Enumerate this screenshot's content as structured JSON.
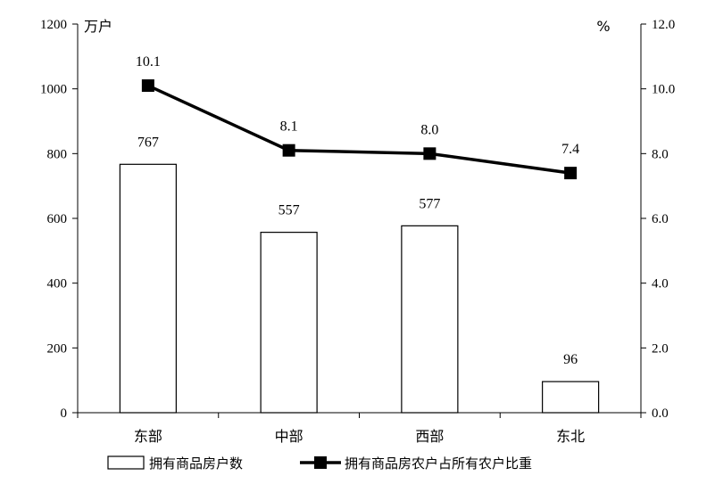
{
  "chart_data": {
    "type": "bar",
    "categories": [
      "东部",
      "中部",
      "西部",
      "东北"
    ],
    "series": [
      {
        "name": "拥有商品房户数",
        "type": "bar",
        "axis": "left",
        "values": [
          767,
          557,
          577,
          96
        ]
      },
      {
        "name": "拥有商品房农户占所有农户比重",
        "type": "line",
        "axis": "right",
        "values": [
          10.1,
          8.1,
          8.0,
          7.4
        ]
      }
    ],
    "bar_labels": [
      "767",
      "557",
      "577",
      "96"
    ],
    "line_labels": [
      "10.1",
      "8.1",
      "8.0",
      "7.4"
    ],
    "y_left": {
      "unit": "万户",
      "ylim": [
        0,
        1200
      ],
      "ticks": [
        "0",
        "200",
        "400",
        "600",
        "800",
        "1000",
        "1200"
      ]
    },
    "y_right": {
      "unit": "%",
      "ylim": [
        0,
        12
      ],
      "ticks": [
        "0.0",
        "2.0",
        "4.0",
        "6.0",
        "8.0",
        "10.0",
        "12.0"
      ]
    },
    "grid": false,
    "legend_position": "bottom",
    "colors": {
      "bar_fill": "#ffffff",
      "bar_stroke": "#000000",
      "line": "#000000",
      "marker": "#000000"
    }
  }
}
